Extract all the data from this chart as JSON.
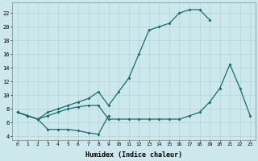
{
  "xlabel": "Humidex (Indice chaleur)",
  "bg_color": "#cce8ec",
  "line_color": "#1a6b6b",
  "grid_color": "#b0d4d8",
  "line1_x": [
    0,
    1,
    2,
    3,
    4,
    5,
    6,
    7,
    8,
    9,
    10,
    11,
    12,
    13,
    14,
    15,
    16,
    17,
    18,
    19
  ],
  "line1_y": [
    7.5,
    7.0,
    6.5,
    7.5,
    8.0,
    8.5,
    9.0,
    9.5,
    10.5,
    8.5,
    10.5,
    12.5,
    16.0,
    19.5,
    20.0,
    20.5,
    22.0,
    22.5,
    22.5,
    21.0
  ],
  "line2_x": [
    0,
    1,
    2,
    3,
    4,
    5,
    6,
    7,
    8,
    9,
    10,
    11,
    12,
    13,
    14,
    15,
    16,
    17,
    18,
    19,
    20,
    21,
    22,
    23
  ],
  "line2_y": [
    7.5,
    7.0,
    6.5,
    7.0,
    7.5,
    8.0,
    8.3,
    8.5,
    8.5,
    6.5,
    6.5,
    6.5,
    6.5,
    6.5,
    6.5,
    6.5,
    6.5,
    7.0,
    7.5,
    9.0,
    11.0,
    14.5,
    11.0,
    7.0
  ],
  "line3_x": [
    0,
    1,
    2,
    3,
    4,
    5,
    6,
    7,
    8,
    9
  ],
  "line3_y": [
    7.5,
    7.0,
    6.5,
    5.0,
    5.0,
    5.0,
    4.8,
    4.5,
    4.3,
    7.0
  ],
  "xlim": [
    -0.5,
    23.5
  ],
  "ylim": [
    3.5,
    23.5
  ],
  "xticks": [
    0,
    1,
    2,
    3,
    4,
    5,
    6,
    7,
    8,
    9,
    10,
    11,
    12,
    13,
    14,
    15,
    16,
    17,
    18,
    19,
    20,
    21,
    22,
    23
  ],
  "yticks": [
    4,
    6,
    8,
    10,
    12,
    14,
    16,
    18,
    20,
    22
  ]
}
